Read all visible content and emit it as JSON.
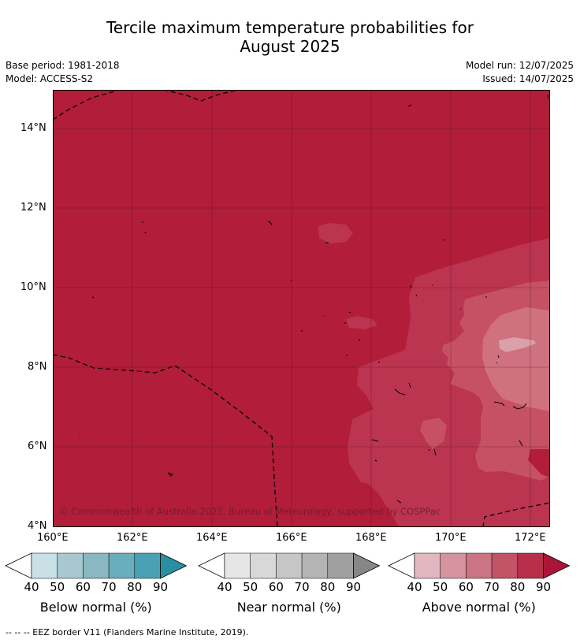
{
  "title_line1": "Tercile maximum temperature probabilities for",
  "title_line2": "August 2025",
  "base_period": "Base period: 1981-2018",
  "model": "Model: ACCESS-S2",
  "model_run": "Model run: 12/07/2025",
  "issued": "Issued: 14/07/2025",
  "copyright": "© Commonwealth of Australia 2025, Bureau of Meteorology, supported by COSPPac",
  "footnote": "--  --  -- EEZ border V11 (Flanders Marine Institute, 2019).",
  "map": {
    "lon_labels": [
      "160°E",
      "162°E",
      "164°E",
      "166°E",
      "168°E",
      "170°E",
      "172°E"
    ],
    "lat_labels": [
      "14°N",
      "12°N",
      "10°N",
      "8°N",
      "6°N",
      "4°N"
    ],
    "lon_range": [
      160,
      172.5
    ],
    "lat_range": [
      4,
      15
    ],
    "base_color": "#b21d3a"
  },
  "colorbars": [
    {
      "label": "Below normal (%)",
      "ticks": [
        "40",
        "50",
        "60",
        "70",
        "80",
        "90"
      ],
      "colors": [
        "#ffffff",
        "#c9e0e6",
        "#a6c8ce",
        "#89b7c2",
        "#6aaebd",
        "#4aa0b4",
        "#2b8fa3"
      ]
    },
    {
      "label": "Near normal (%)",
      "ticks": [
        "40",
        "50",
        "60",
        "70",
        "80",
        "90"
      ],
      "colors": [
        "#ffffff",
        "#e6e6e6",
        "#d8d8d8",
        "#c6c6c6",
        "#b4b4b4",
        "#a0a0a0",
        "#878787"
      ]
    },
    {
      "label": "Above normal (%)",
      "ticks": [
        "40",
        "50",
        "60",
        "70",
        "80",
        "90"
      ],
      "colors": [
        "#ffffff",
        "#e2b7bf",
        "#d4939f",
        "#ca7484",
        "#c25468",
        "#b82f4b",
        "#ab1539"
      ]
    }
  ]
}
